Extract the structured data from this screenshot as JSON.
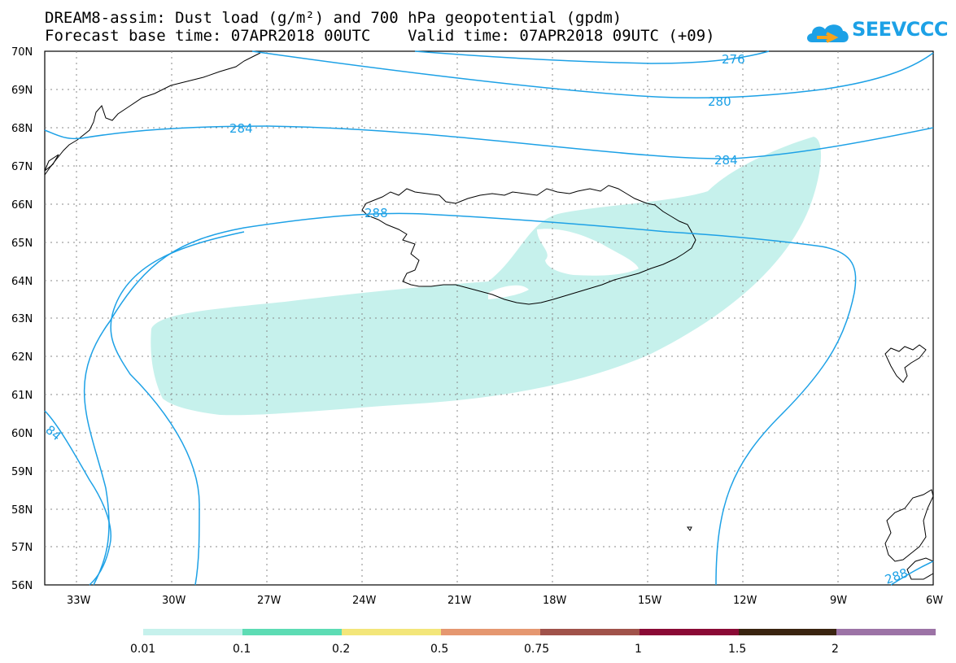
{
  "title": {
    "line1": "DREAM8-assim: Dust load (g/m²) and 700 hPa geopotential (gpdm)",
    "line2": "Forecast base time: 07APR2018 00UTC    Valid time: 07APR2018 09UTC (+09)"
  },
  "logo": {
    "text": "SEEVCCC",
    "icon": "cloud-icon"
  },
  "map": {
    "lat_labels": [
      "70N",
      "69N",
      "68N",
      "67N",
      "66N",
      "65N",
      "64N",
      "63N",
      "62N",
      "61N",
      "60N",
      "59N",
      "58N",
      "57N",
      "56N"
    ],
    "lon_labels": [
      "33W",
      "30W",
      "27W",
      "24W",
      "21W",
      "18W",
      "15W",
      "12W",
      "9W",
      "6W"
    ],
    "contour_labels": [
      "276",
      "280",
      "284",
      "284",
      "288",
      "84",
      "288"
    ],
    "colors": {
      "contour": "#1da1e6",
      "dust_light": "#c6f1ec",
      "coast": "#000000"
    }
  },
  "colorbar": {
    "labels": [
      "0.01",
      "0.1",
      "0.2",
      "0.5",
      "0.75",
      "1",
      "1.5",
      "2"
    ],
    "colors": [
      "#c6f1ec",
      "#5ddcb4",
      "#f3e67a",
      "#e59770",
      "#a0524a",
      "#8a0a35",
      "#3a2410",
      "#9c73a6"
    ]
  }
}
